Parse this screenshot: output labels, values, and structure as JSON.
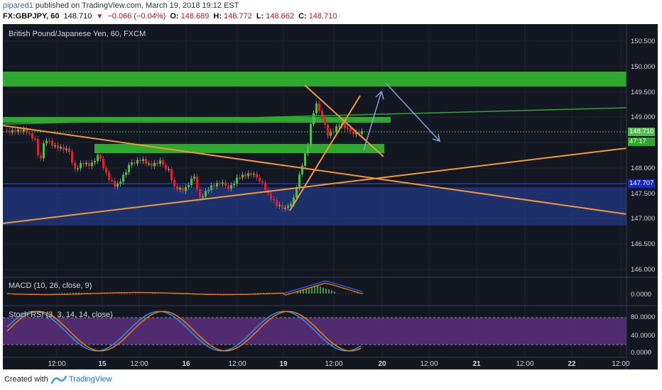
{
  "header": {
    "publisher": "pipared1",
    "published_text": "published on TradingView.com, March 19, 2018 19:12 EST",
    "symbol": "FX:GBPJPY, 60",
    "last": "148.710",
    "change": "−0.066 (−0.04%)",
    "open_label": "O:",
    "open": "148.689",
    "high_label": "H:",
    "high": "148.772",
    "low_label": "L:",
    "low": "148.662",
    "close_label": "C:",
    "close": "148.710"
  },
  "chart": {
    "title": "British Pound/Japanese Yen, 60, FXCM",
    "price_ticks": [
      "150.500",
      "150.000",
      "149.500",
      "149.000",
      "148.500",
      "148.000",
      "147.500",
      "147.000",
      "146.500",
      "146.000"
    ],
    "macd_ticks": [
      "0.0000"
    ],
    "rsi_ticks": [
      "80.0000",
      "40.0000",
      "0.0000"
    ],
    "time_ticks": [
      "12:00",
      "15",
      "12:00",
      "16",
      "12:00",
      "19",
      "12:00",
      "20",
      "12:00",
      "21",
      "12:00",
      "22",
      "12:00"
    ],
    "price_tags": {
      "last": "148.710",
      "countdown": "47:17",
      "blue_level": "147.707"
    },
    "colors": {
      "background": "#131722",
      "up": "#4cbb4a",
      "down": "#e0202c",
      "zone_green": "#2ea82e",
      "zone_blue": "#233a86",
      "trend_orange": "#f29a38",
      "arrow": "#8aa0d8",
      "rsi_band": "#5c2f7e"
    }
  },
  "macd": {
    "label": "MACD (10, 26, close, 9)"
  },
  "stoch_rsi": {
    "label": "Stoch RSI (3, 3, 14, 14, close)"
  },
  "footer": {
    "created_with": "Created with",
    "brand": "TradingView"
  }
}
